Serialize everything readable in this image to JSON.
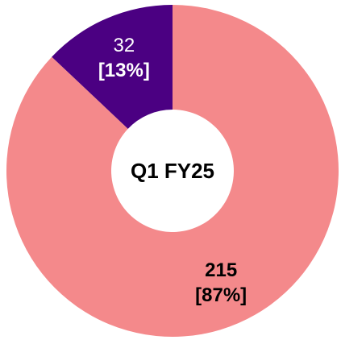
{
  "chart_data": {
    "type": "donut",
    "center_label": "Q1 FY25",
    "values": [
      215,
      32
    ],
    "percent_labels": [
      "[87%]",
      "[13%]"
    ],
    "colors": [
      "#f4898b",
      "#4b0082"
    ],
    "label_colors": [
      "#000000",
      "#ffffff"
    ]
  }
}
